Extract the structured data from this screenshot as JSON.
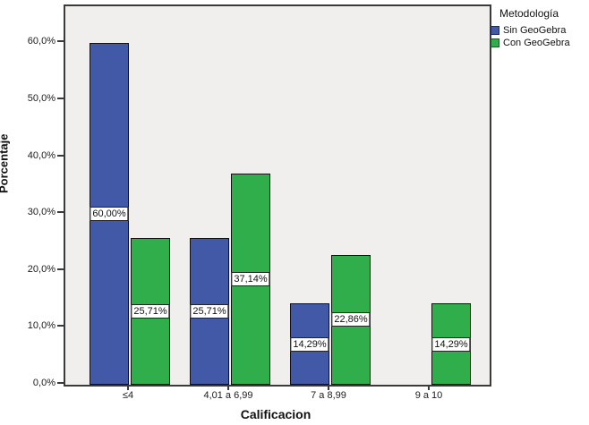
{
  "chart_data": {
    "type": "bar",
    "title": "",
    "xlabel": "Calificacion",
    "ylabel": "Porcentaje",
    "categories": [
      "≤4",
      "4,01 a 6,99",
      "7 a 8,99",
      "9 a 10"
    ],
    "series": [
      {
        "name": "Sin GeoGebra",
        "color": "#4159a7",
        "border_color": "#1d2a63",
        "values": [
          60.0,
          25.71,
          14.29,
          0
        ],
        "labels": [
          "60,00%",
          "25,71%",
          "14,29%",
          ""
        ]
      },
      {
        "name": "Con GeoGebra",
        "color": "#31ae4c",
        "border_color": "#0f5e24",
        "values": [
          25.71,
          37.14,
          22.86,
          14.29
        ],
        "labels": [
          "25,71%",
          "37,14%",
          "22,86%",
          "14,29%"
        ]
      }
    ],
    "ylim": [
      0,
      66.5
    ],
    "yticks": {
      "values": [
        0,
        10,
        20,
        30,
        40,
        50,
        60
      ],
      "labels": [
        "0,0%",
        "10,0%",
        "20,0%",
        "30,0%",
        "40,0%",
        "50,0%",
        "60,0%"
      ]
    },
    "grid": false,
    "legend_title": "Metodología",
    "legend_position": "top-right-outside",
    "plot_background": "#f0efed",
    "frame_color": "#3a3a3a"
  }
}
